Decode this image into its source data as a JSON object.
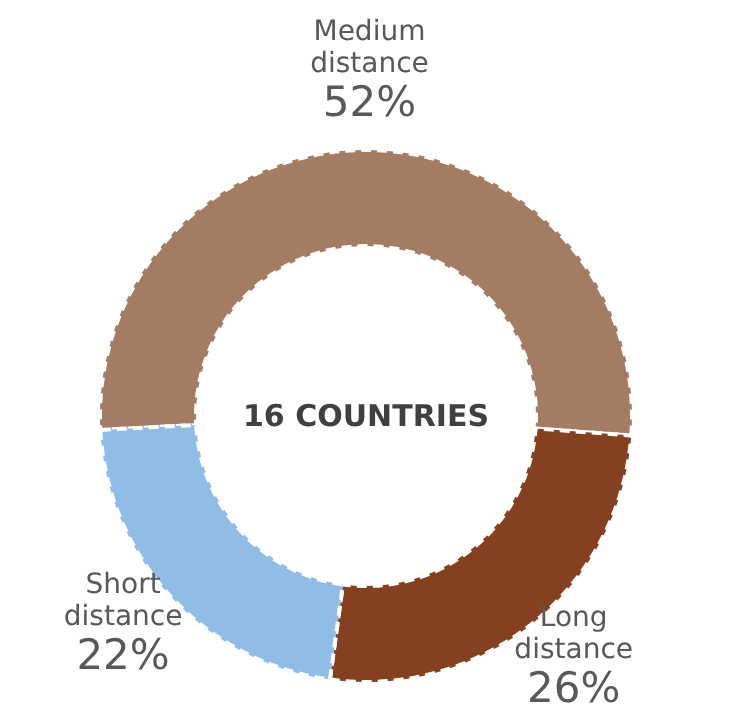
{
  "chart_data": {
    "type": "donut",
    "categories": [
      "Medium distance",
      "Long distance",
      "Short distance"
    ],
    "values": [
      52,
      26,
      22
    ],
    "value_labels": [
      "52%",
      "26%",
      "22%"
    ],
    "colors": [
      "#a47c63",
      "#84401f",
      "#8fbde6"
    ],
    "annotations": [
      "16 COUNTRIES"
    ]
  }
}
